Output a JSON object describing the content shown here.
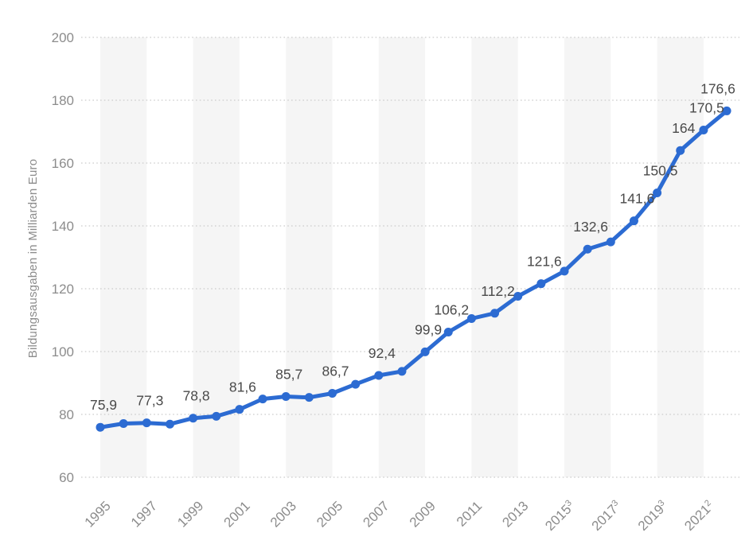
{
  "chart_data": {
    "type": "line",
    "title": "",
    "xlabel": "",
    "ylabel": "Bildungsausgaben in Milliarden Euro",
    "ylim": [
      60,
      200
    ],
    "grid": "horizontal-dotted",
    "legend": "none",
    "background_bands": "alternating light gray vertical stripes, 2 years wide",
    "y_ticks": [
      200,
      180,
      160,
      140,
      120,
      100,
      80,
      60
    ],
    "years": [
      1995,
      1996,
      1997,
      1998,
      1999,
      2000,
      2001,
      2002,
      2003,
      2004,
      2005,
      2006,
      2007,
      2008,
      2009,
      2010,
      2011,
      2012,
      2013,
      2014,
      2015,
      2016,
      2017,
      2018,
      2019,
      2020,
      2021,
      2022
    ],
    "values": [
      75.9,
      77.1,
      77.3,
      76.9,
      78.8,
      79.4,
      81.6,
      84.9,
      85.7,
      85.4,
      86.7,
      89.6,
      92.4,
      93.7,
      99.9,
      106.2,
      110.5,
      112.2,
      117.6,
      121.6,
      125.6,
      132.6,
      134.9,
      141.6,
      150.5,
      164,
      170.5,
      176.6
    ],
    "data_labels": [
      "75,9",
      null,
      "77,3",
      null,
      "78,8",
      null,
      "81,6",
      null,
      "85,7",
      null,
      "86,7",
      null,
      "92,4",
      null,
      "99,9",
      "106,2",
      null,
      "112,2",
      null,
      "121,6",
      null,
      "132,6",
      null,
      "141,6",
      "150,5",
      "164",
      "170,5",
      "176,6"
    ],
    "x_ticks": [
      {
        "year": 1995,
        "text": "1995",
        "superscript": ""
      },
      {
        "year": 1997,
        "text": "1997",
        "superscript": ""
      },
      {
        "year": 1999,
        "text": "1999",
        "superscript": ""
      },
      {
        "year": 2001,
        "text": "2001",
        "superscript": ""
      },
      {
        "year": 2003,
        "text": "2003",
        "superscript": ""
      },
      {
        "year": 2005,
        "text": "2005",
        "superscript": ""
      },
      {
        "year": 2007,
        "text": "2007",
        "superscript": ""
      },
      {
        "year": 2009,
        "text": "2009",
        "superscript": ""
      },
      {
        "year": 2011,
        "text": "2011",
        "superscript": ""
      },
      {
        "year": 2013,
        "text": "2013",
        "superscript": ""
      },
      {
        "year": 2015,
        "text": "2015",
        "superscript": "3"
      },
      {
        "year": 2017,
        "text": "2017",
        "superscript": "3"
      },
      {
        "year": 2019,
        "text": "2019",
        "superscript": "3"
      },
      {
        "year": 2021,
        "text": "2021",
        "superscript": "2"
      }
    ]
  },
  "style": {
    "line_color": "#2c6bd2",
    "marker_color": "#2c6bd2",
    "band_color": "#f5f5f5",
    "grid_color": "#cccccc",
    "axis_text_color": "#8c8c8c",
    "data_label_color": "#4a4a4a",
    "background": "#ffffff"
  }
}
